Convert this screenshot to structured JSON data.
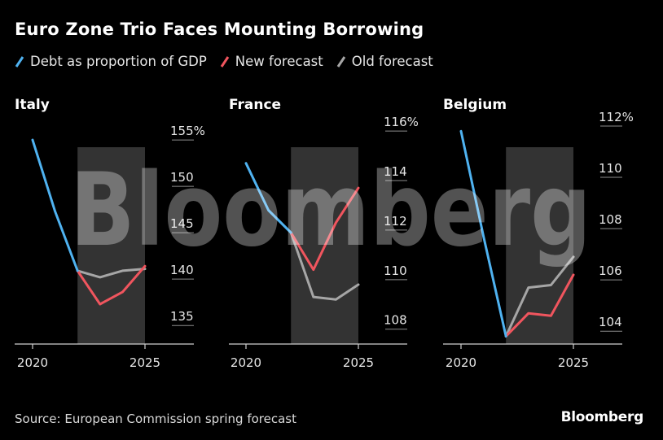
{
  "title": "Euro Zone Trio Faces Mounting Borrowing",
  "legend": [
    {
      "label": "Debt as proportion of GDP",
      "color": "#4fb2f0"
    },
    {
      "label": "New forecast",
      "color": "#f0555e"
    },
    {
      "label": "Old forecast",
      "color": "#a6a6a6"
    }
  ],
  "source": "Source: European Commission spring forecast",
  "logo": "Bloomberg",
  "watermark": "Bloomberg",
  "colors": {
    "debt": "#4fb2f0",
    "new": "#f0555e",
    "old": "#a6a6a6",
    "shade": "#333333",
    "axis": "#8c8c8c"
  },
  "chart_data": [
    {
      "type": "line",
      "panel_title": "Italy",
      "x_ticks": [
        "2020",
        "2025"
      ],
      "y_ticks": [
        135,
        140,
        145,
        150,
        155
      ],
      "y_tick_labels": [
        "135",
        "140",
        "145",
        "150",
        "155%"
      ],
      "ylim": [
        133,
        156.5
      ],
      "xlim": [
        2019.6,
        2025.4
      ],
      "shaded_region": [
        2022,
        2025
      ],
      "series": [
        {
          "name": "Debt as proportion of GDP",
          "key": "debt",
          "x": [
            2020,
            2021,
            2022
          ],
          "y": [
            155.0,
            147.3,
            140.9
          ]
        },
        {
          "name": "New forecast",
          "key": "new",
          "x": [
            2022,
            2023,
            2024,
            2025
          ],
          "y": [
            140.9,
            137.3,
            138.6,
            141.4
          ]
        },
        {
          "name": "Old forecast",
          "key": "old",
          "x": [
            2022,
            2023,
            2024,
            2025
          ],
          "y": [
            140.9,
            140.2,
            140.9,
            141.1
          ]
        }
      ]
    },
    {
      "type": "line",
      "panel_title": "France",
      "x_ticks": [
        "2020",
        "2025"
      ],
      "y_ticks": [
        108,
        110,
        112,
        114,
        116
      ],
      "y_tick_labels": [
        "108",
        "110",
        "112",
        "114",
        "116%"
      ],
      "ylim": [
        107.4,
        116.2
      ],
      "xlim": [
        2019.6,
        2025.4
      ],
      "shaded_region": [
        2022,
        2025
      ],
      "series": [
        {
          "name": "Debt as proportion of GDP",
          "key": "debt",
          "x": [
            2020,
            2021,
            2022
          ],
          "y": [
            114.7,
            112.8,
            111.9
          ]
        },
        {
          "name": "New forecast",
          "key": "new",
          "x": [
            2022,
            2023,
            2024,
            2025
          ],
          "y": [
            111.9,
            110.4,
            112.3,
            113.7
          ]
        },
        {
          "name": "Old forecast",
          "key": "old",
          "x": [
            2022,
            2023,
            2024,
            2025
          ],
          "y": [
            111.9,
            109.3,
            109.2,
            109.8
          ]
        }
      ]
    },
    {
      "type": "line",
      "panel_title": "Belgium",
      "x_ticks": [
        "2020",
        "2025"
      ],
      "y_ticks": [
        104,
        106,
        108,
        110,
        112
      ],
      "y_tick_labels": [
        "104",
        "106",
        "108",
        "110",
        "112%"
      ],
      "ylim": [
        103.5,
        112.0
      ],
      "xlim": [
        2019.6,
        2025.4
      ],
      "shaded_region": [
        2022,
        2025
      ],
      "series": [
        {
          "name": "Debt as proportion of GDP",
          "key": "debt",
          "x": [
            2020,
            2021,
            2022
          ],
          "y": [
            111.8,
            107.7,
            103.8
          ]
        },
        {
          "name": "New forecast",
          "key": "new",
          "x": [
            2022,
            2023,
            2024,
            2025
          ],
          "y": [
            103.8,
            104.7,
            104.6,
            106.2
          ]
        },
        {
          "name": "Old forecast",
          "key": "old",
          "x": [
            2022,
            2023,
            2024,
            2025
          ],
          "y": [
            103.8,
            105.7,
            105.8,
            106.9
          ]
        }
      ]
    }
  ]
}
